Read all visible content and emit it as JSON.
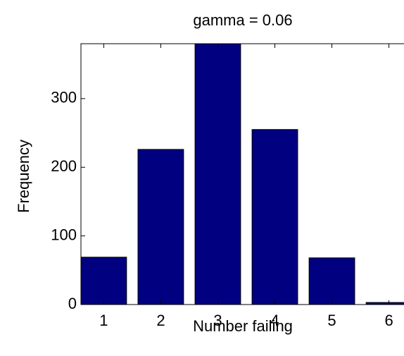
{
  "chart_data": {
    "type": "bar",
    "title": "gamma = 0.06",
    "xlabel": "Number failing",
    "ylabel": "Frequency",
    "x": [
      1,
      2,
      3,
      4,
      5,
      6
    ],
    "values": [
      69,
      226,
      380,
      255,
      68,
      3
    ],
    "color": "#000080",
    "xlim": [
      0.6,
      6.4
    ],
    "xticks": [
      1,
      2,
      3,
      4,
      5,
      6
    ],
    "ylim": [
      0,
      380
    ],
    "yticks": [
      0,
      100,
      200,
      300
    ]
  }
}
